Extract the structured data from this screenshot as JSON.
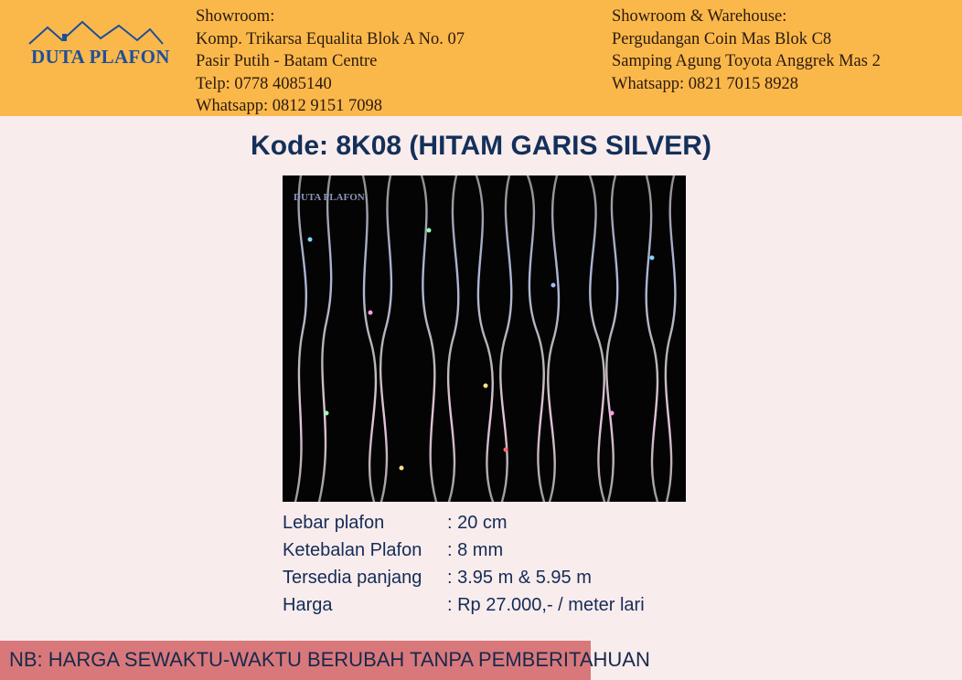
{
  "brand": {
    "name": "DUTA PLAFON"
  },
  "showroom": {
    "lines": [
      "Showroom:",
      "Komp. Trikarsa Equalita Blok A No. 07",
      "Pasir Putih - Batam Centre",
      "Telp: 0778 4085140",
      "Whatsapp: 0812 9151 7098"
    ]
  },
  "warehouse": {
    "lines": [
      "Showroom & Warehouse:",
      "Pergudangan Coin Mas Blok C8",
      "Samping Agung Toyota Anggrek Mas 2",
      "Whatsapp: 0821 7015 8928"
    ]
  },
  "product": {
    "title": "Kode: 8K08 (HITAM GARIS SILVER)",
    "image_watermark": "DUTA PLAFON",
    "specs": [
      {
        "label": "Lebar plafon",
        "value": ": 20 cm"
      },
      {
        "label": "Ketebalan Plafon",
        "value": " : 8 mm"
      },
      {
        "label": "Tersedia panjang",
        "value": ": 3.95 m & 5.95 m"
      },
      {
        "label": "Harga",
        "value": ": Rp 27.000,- / meter lari"
      }
    ]
  },
  "note": {
    "text": "NB: HARGA SEWAKTU-WAKTU BERUBAH TANPA PEMBERITAHUAN"
  },
  "colors": {
    "header_bg": "#fbb84a",
    "page_bg": "#f9ecec",
    "title": "#13305a",
    "note_bg": "#d9787a",
    "logo": "#1f4f9a"
  }
}
